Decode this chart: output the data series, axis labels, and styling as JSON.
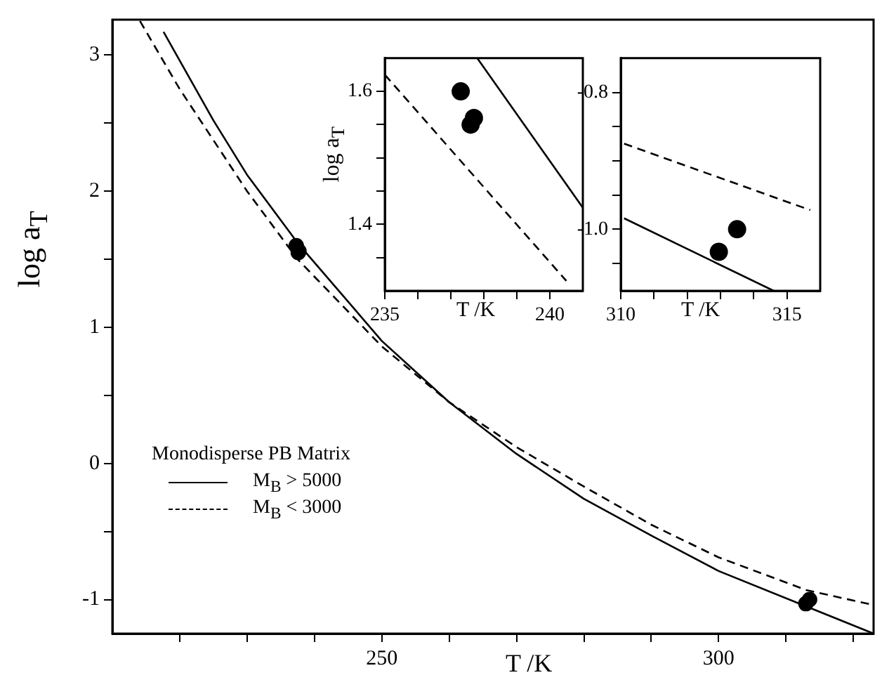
{
  "chart_data": [
    {
      "type": "line",
      "xlabel": "T /K",
      "ylabel": "log a$_{T}$",
      "legend_title": "Monodisperse PB Matrix",
      "legend": "left",
      "grid": false,
      "xlim": [
        210,
        323
      ],
      "xticks": [
        {
          "value": 220,
          "label": null
        },
        {
          "value": 230,
          "label": null
        },
        {
          "value": 240,
          "label": null
        },
        250,
        {
          "value": 260,
          "label": null
        },
        {
          "value": 270,
          "label": null
        },
        {
          "value": 280,
          "label": null
        },
        {
          "value": 290,
          "label": null
        },
        300,
        {
          "value": 310,
          "label": null
        },
        {
          "value": 320,
          "label": null
        }
      ],
      "ylim": [
        -1.25,
        3.26
      ],
      "yticks": [
        -1,
        {
          "value": -0.5,
          "label": null
        },
        0,
        {
          "value": 0.5,
          "label": null
        },
        1,
        {
          "value": 1.5,
          "label": null
        },
        2,
        {
          "value": 2.5,
          "label": null
        },
        3
      ],
      "series": [
        {
          "name": "M$_{B}$ > 5000",
          "color": "#000000",
          "line_style": "solid",
          "marker": "none",
          "x": [
            217.6,
            225,
            230,
            237.5,
            250,
            260,
            270,
            280,
            290,
            300,
            313,
            323
          ],
          "values": [
            3.17,
            2.52,
            2.12,
            1.62,
            0.9,
            0.45,
            0.07,
            -0.26,
            -0.53,
            -0.79,
            -1.05,
            -1.25
          ]
        },
        {
          "name": "M$_{B}$ < 3000",
          "color": "#000000",
          "line_style": "dashed",
          "marker": "none",
          "x": [
            214.1,
            220,
            230,
            237.5,
            250,
            260,
            270,
            280,
            290,
            300,
            313,
            323
          ],
          "values": [
            3.25,
            2.75,
            2.0,
            1.5,
            0.86,
            0.45,
            0.12,
            -0.17,
            -0.45,
            -0.69,
            -0.93,
            -1.04
          ]
        },
        {
          "type": "scatter",
          "color": "#000000",
          "marker": "circle",
          "x": [
            237.3,
            237.6,
            237.7,
            312.95,
            313.5
          ],
          "values": [
            1.6,
            1.55,
            1.56,
            -1.03,
            -1.0
          ]
        }
      ]
    },
    {
      "type": "line",
      "xlabel": "T /K",
      "ylabel": "log a$_{T}$",
      "grid": false,
      "xlim": [
        235,
        241
      ],
      "xticks": [
        235,
        {
          "value": 236,
          "label": null
        },
        {
          "value": 237,
          "label": null
        },
        {
          "value": 238,
          "label": null
        },
        {
          "value": 239,
          "label": null
        },
        240
      ],
      "ylim": [
        1.3,
        1.65
      ],
      "yticks": [
        {
          "value": 1.35,
          "label": null
        },
        1.4,
        {
          "value": 1.45,
          "label": null
        },
        {
          "value": 1.5,
          "label": null
        },
        {
          "value": 1.55,
          "label": null
        },
        1.6
      ],
      "series": [
        {
          "color": "#000000",
          "line_style": "solid",
          "marker": "none",
          "x": [
            237.8,
            241
          ],
          "values": [
            1.65,
            1.425
          ]
        },
        {
          "color": "#000000",
          "line_style": "dashed",
          "marker": "none",
          "x": [
            235,
            240.5
          ],
          "values": [
            1.625,
            1.315
          ]
        },
        {
          "type": "scatter",
          "color": "#000000",
          "marker": "circle",
          "x": [
            237.3,
            237.6,
            237.7
          ],
          "values": [
            1.6,
            1.55,
            1.56
          ]
        }
      ]
    },
    {
      "type": "line",
      "xlabel": "T /K",
      "grid": false,
      "xlim": [
        310,
        316
      ],
      "xticks": [
        310,
        {
          "value": 311,
          "label": null
        },
        {
          "value": 312,
          "label": null
        },
        {
          "value": 313,
          "label": null
        },
        {
          "value": 314,
          "label": null
        },
        315
      ],
      "ylim": [
        -1.09,
        -0.75
      ],
      "yticks": [
        {
          "value": -1.05,
          "label": null
        },
        {
          "value": -1.0,
          "label": "-1.0"
        },
        {
          "value": -0.95,
          "label": null
        },
        {
          "value": -0.9,
          "label": null
        },
        {
          "value": -0.85,
          "label": null
        },
        {
          "value": -0.8,
          "label": "-0.8"
        }
      ],
      "series": [
        {
          "color": "#000000",
          "line_style": "solid",
          "marker": "none",
          "x": [
            310.1,
            314.6
          ],
          "values": [
            -0.984,
            -1.09
          ]
        },
        {
          "color": "#000000",
          "line_style": "dashed",
          "marker": "none",
          "x": [
            310.1,
            315.7
          ],
          "values": [
            -0.875,
            -0.972
          ]
        },
        {
          "type": "scatter",
          "color": "#000000",
          "marker": "circle",
          "x": [
            312.95,
            313.5
          ],
          "values": [
            -1.033,
            -1.0
          ]
        }
      ]
    }
  ]
}
